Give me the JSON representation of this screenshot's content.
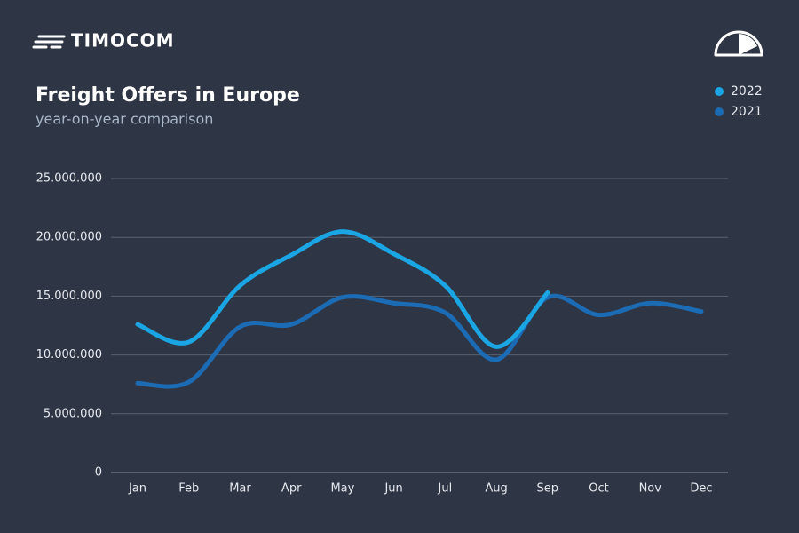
{
  "brand": "TIMOCOM",
  "chart_data": {
    "type": "line",
    "title": "Freight Offers in Europe",
    "subtitle": "year-on-year comparison",
    "categories": [
      "Jan",
      "Feb",
      "Mar",
      "Apr",
      "May",
      "Jun",
      "Jul",
      "Aug",
      "Sep",
      "Oct",
      "Nov",
      "Dec"
    ],
    "series": [
      {
        "name": "2022",
        "color": "#1aa6e4",
        "values": [
          12600000,
          11100000,
          15900000,
          18500000,
          20500000,
          18600000,
          15900000,
          10700000,
          15300000,
          null,
          null,
          null
        ]
      },
      {
        "name": "2021",
        "color": "#1b6bb5",
        "values": [
          7600000,
          7700000,
          12400000,
          12600000,
          14900000,
          14400000,
          13600000,
          9600000,
          14900000,
          13400000,
          14400000,
          13700000
        ]
      }
    ],
    "ylim": [
      0,
      25000000
    ],
    "yticks": [
      0,
      {
        "value": 5000000,
        "label": "5.000.000"
      },
      {
        "value": 10000000,
        "label": "10.000.000"
      },
      {
        "value": 15000000,
        "label": "15.000.000"
      },
      {
        "value": 20000000,
        "label": "20.000.000"
      },
      {
        "value": 25000000,
        "label": "25.000.000"
      }
    ],
    "grid": true,
    "legend": "top-right"
  }
}
